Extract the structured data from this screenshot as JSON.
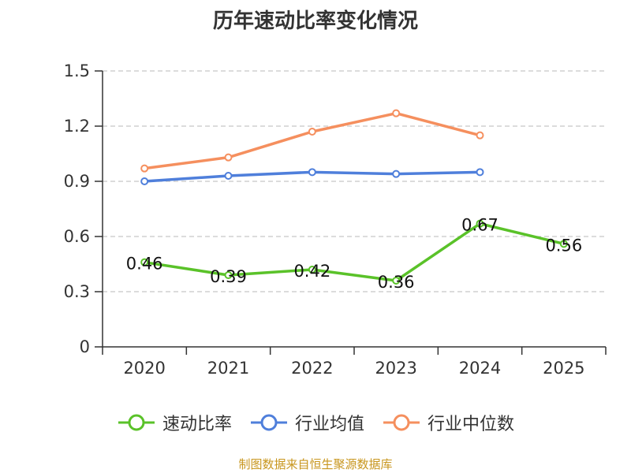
{
  "chart_data": {
    "type": "line",
    "title": "历年速动比率变化情况",
    "categories": [
      "2020",
      "2021",
      "2022",
      "2023",
      "2024",
      "2025"
    ],
    "ylim": [
      0,
      1.5
    ],
    "yticks": [
      0,
      0.3,
      0.6,
      0.9,
      1.2,
      1.5
    ],
    "ytick_labels": [
      "0",
      "0.3",
      "0.6",
      "0.9",
      "1.2",
      "1.5"
    ],
    "grid": true,
    "legend_position": "bottom",
    "series": [
      {
        "name": "速动比率",
        "color": "#5ac229",
        "values": [
          0.46,
          0.39,
          0.42,
          0.36,
          0.67,
          0.56
        ],
        "labels": [
          "0.46",
          "0.39",
          "0.42",
          "0.36",
          "0.67",
          "0.56"
        ],
        "show_labels": true
      },
      {
        "name": "行业均值",
        "color": "#4f7fdb",
        "values": [
          0.9,
          0.93,
          0.95,
          0.94,
          0.95,
          null
        ],
        "show_labels": false
      },
      {
        "name": "行业中位数",
        "color": "#f58f5e",
        "values": [
          0.97,
          1.03,
          1.17,
          1.27,
          1.15,
          null
        ],
        "show_labels": false
      }
    ]
  },
  "footer": {
    "source": "制图数据来自恒生聚源数据库"
  }
}
